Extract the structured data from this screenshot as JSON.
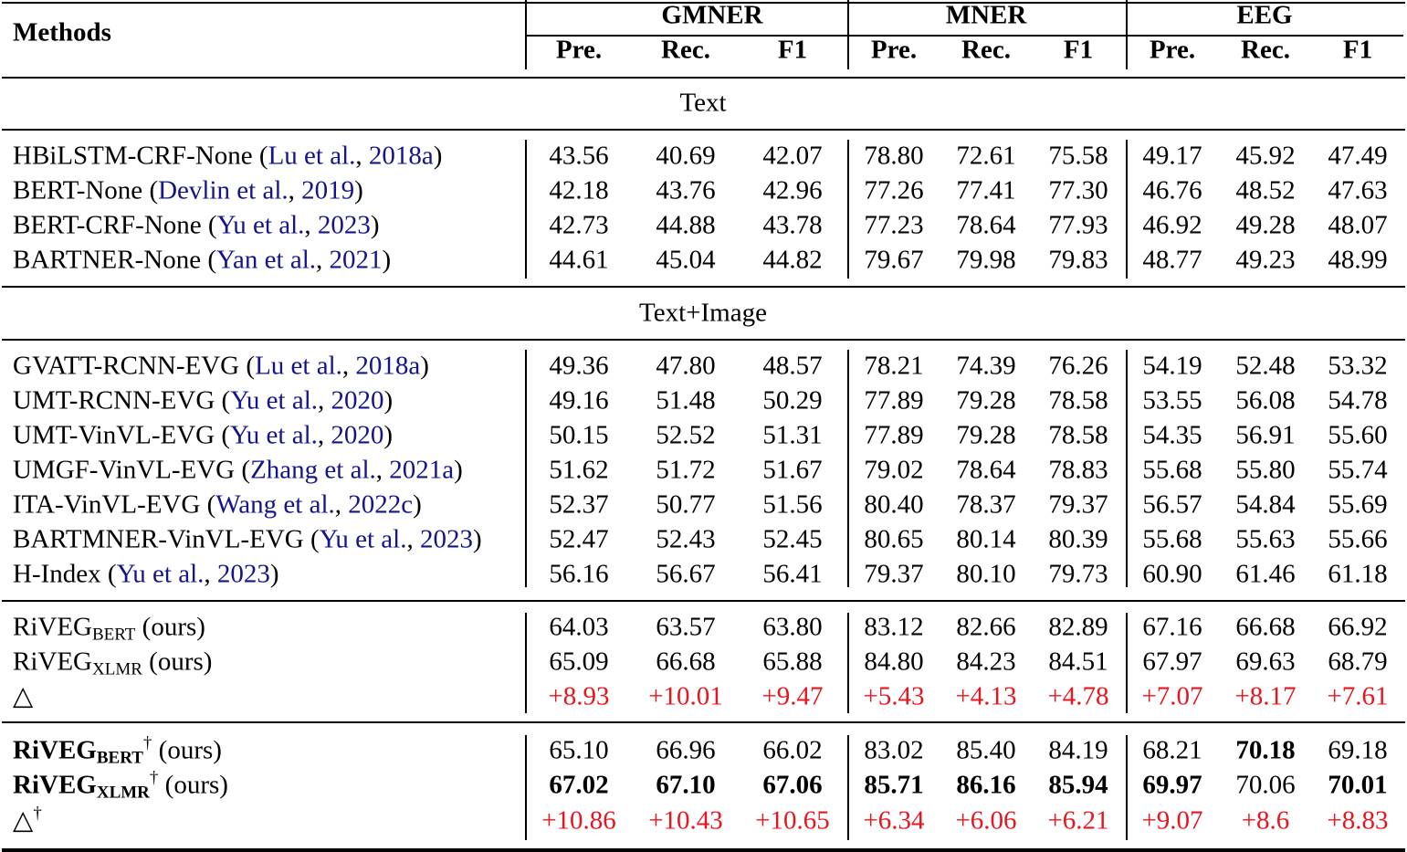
{
  "header": {
    "methods_label": "Methods",
    "groups": [
      "GMNER",
      "MNER",
      "EEG"
    ],
    "metrics": [
      "Pre.",
      "Rec.",
      "F1"
    ]
  },
  "sections": [
    {
      "title": "Text",
      "rows": [
        {
          "name": "HBiLSTM-CRF-None",
          "authors": "Lu et al.",
          "year": "2018a",
          "values": [
            "43.56",
            "40.69",
            "42.07",
            "78.80",
            "72.61",
            "75.58",
            "49.17",
            "45.92",
            "47.49"
          ]
        },
        {
          "name": "BERT-None",
          "authors": "Devlin et al.",
          "year": "2019",
          "values": [
            "42.18",
            "43.76",
            "42.96",
            "77.26",
            "77.41",
            "77.30",
            "46.76",
            "48.52",
            "47.63"
          ]
        },
        {
          "name": "BERT-CRF-None",
          "authors": "Yu et al.",
          "year": "2023",
          "values": [
            "42.73",
            "44.88",
            "43.78",
            "77.23",
            "78.64",
            "77.93",
            "46.92",
            "49.28",
            "48.07"
          ]
        },
        {
          "name": "BARTNER-None",
          "authors": "Yan et al.",
          "year": "2021",
          "values": [
            "44.61",
            "45.04",
            "44.82",
            "79.67",
            "79.98",
            "79.83",
            "48.77",
            "49.23",
            "48.99"
          ]
        }
      ]
    },
    {
      "title": "Text+Image",
      "rows": [
        {
          "name": "GVATT-RCNN-EVG",
          "authors": "Lu et al.",
          "year": "2018a",
          "values": [
            "49.36",
            "47.80",
            "48.57",
            "78.21",
            "74.39",
            "76.26",
            "54.19",
            "52.48",
            "53.32"
          ]
        },
        {
          "name": "UMT-RCNN-EVG",
          "authors": "Yu et al.",
          "year": "2020",
          "values": [
            "49.16",
            "51.48",
            "50.29",
            "77.89",
            "79.28",
            "78.58",
            "53.55",
            "56.08",
            "54.78"
          ]
        },
        {
          "name": "UMT-VinVL-EVG",
          "authors": "Yu et al.",
          "year": "2020",
          "values": [
            "50.15",
            "52.52",
            "51.31",
            "77.89",
            "79.28",
            "78.58",
            "54.35",
            "56.91",
            "55.60"
          ]
        },
        {
          "name": "UMGF-VinVL-EVG",
          "authors": "Zhang et al.",
          "year": "2021a",
          "values": [
            "51.62",
            "51.72",
            "51.67",
            "79.02",
            "78.64",
            "78.83",
            "55.68",
            "55.80",
            "55.74"
          ]
        },
        {
          "name": "ITA-VinVL-EVG",
          "authors": "Wang et al.",
          "year": "2022c",
          "values": [
            "52.37",
            "50.77",
            "51.56",
            "80.40",
            "78.37",
            "79.37",
            "56.57",
            "54.84",
            "55.69"
          ]
        },
        {
          "name": "BARTMNER-VinVL-EVG",
          "authors": "Yu et al.",
          "year": "2023",
          "values": [
            "52.47",
            "52.43",
            "52.45",
            "80.65",
            "80.14",
            "80.39",
            "55.68",
            "55.63",
            "55.66"
          ]
        },
        {
          "name": "H-Index",
          "authors": "Yu et al.",
          "year": "2023",
          "values": [
            "56.16",
            "56.67",
            "56.41",
            "79.37",
            "80.10",
            "79.73",
            "60.90",
            "61.46",
            "61.18"
          ]
        }
      ]
    }
  ],
  "ours": [
    {
      "name": "RiVEG",
      "sub": "BERT",
      "dagger": "",
      "suffix": "(ours)",
      "bold_name": false,
      "values": [
        "64.03",
        "63.57",
        "63.80",
        "83.12",
        "82.66",
        "82.89",
        "67.16",
        "66.68",
        "66.92"
      ],
      "bold": []
    },
    {
      "name": "RiVEG",
      "sub": "XLMR",
      "dagger": "",
      "suffix": "(ours)",
      "bold_name": false,
      "values": [
        "65.09",
        "66.68",
        "65.88",
        "84.80",
        "84.23",
        "84.51",
        "67.97",
        "69.63",
        "68.79"
      ],
      "bold": []
    },
    {
      "name": "△",
      "sub": "",
      "dagger": "",
      "suffix": "",
      "bold_name": false,
      "delta": true,
      "values": [
        "+8.93",
        "+10.01",
        "+9.47",
        "+5.43",
        "+4.13",
        "+4.78",
        "+7.07",
        "+8.17",
        "+7.61"
      ],
      "bold": []
    },
    {
      "name": "RiVEG",
      "sub": "BERT",
      "dagger": "†",
      "suffix": "(ours)",
      "bold_name": true,
      "values": [
        "65.10",
        "66.96",
        "66.02",
        "83.02",
        "85.40",
        "84.19",
        "68.21",
        "70.18",
        "69.18"
      ],
      "bold": [
        7
      ]
    },
    {
      "name": "RiVEG",
      "sub": "XLMR",
      "dagger": "†",
      "suffix": "(ours)",
      "bold_name": true,
      "values": [
        "67.02",
        "67.10",
        "67.06",
        "85.71",
        "86.16",
        "85.94",
        "69.97",
        "70.06",
        "70.01"
      ],
      "bold": [
        0,
        1,
        2,
        3,
        4,
        5,
        6,
        8
      ]
    },
    {
      "name": "△",
      "sub": "",
      "dagger": "†",
      "suffix": "",
      "bold_name": false,
      "delta": true,
      "values": [
        "+10.86",
        "+10.43",
        "+10.65",
        "+6.34",
        "+6.06",
        "+6.21",
        "+9.07",
        "+8.6",
        "+8.83"
      ],
      "bold": []
    }
  ],
  "colors": {
    "citation": "#14148c",
    "delta": "#e8141e"
  }
}
